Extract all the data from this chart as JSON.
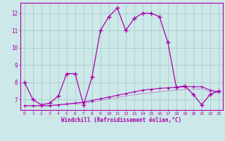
{
  "bg_color": "#cce8e8",
  "grid_color": "#aacccc",
  "line_color": "#aa00aa",
  "x_ticks": [
    0,
    1,
    2,
    3,
    4,
    5,
    6,
    7,
    8,
    9,
    10,
    11,
    12,
    13,
    14,
    15,
    16,
    17,
    18,
    19,
    20,
    21,
    22,
    23
  ],
  "xlabel": "Windchill (Refroidissement éolien,°C)",
  "ylabel_ticks": [
    7,
    8,
    9,
    10,
    11,
    12
  ],
  "ylim": [
    6.4,
    12.6
  ],
  "xlim": [
    -0.5,
    23.5
  ],
  "series1_x": [
    0,
    1,
    2,
    3,
    4,
    5,
    6,
    7,
    8,
    9,
    10,
    11,
    12,
    13,
    14,
    15,
    16,
    17,
    18,
    19,
    20,
    21,
    22,
    23
  ],
  "series1_y": [
    8.0,
    7.0,
    6.7,
    6.8,
    7.2,
    8.5,
    8.5,
    6.7,
    8.3,
    11.0,
    11.8,
    12.3,
    11.0,
    11.7,
    12.0,
    12.0,
    11.8,
    10.3,
    7.7,
    7.8,
    7.3,
    6.7,
    7.3,
    7.5
  ],
  "series2_x": [
    0,
    1,
    2,
    3,
    4,
    5,
    6,
    7,
    8,
    9,
    10,
    11,
    12,
    13,
    14,
    15,
    16,
    17,
    18,
    19,
    20,
    21,
    22,
    23
  ],
  "series2_y": [
    6.65,
    6.65,
    6.65,
    6.65,
    6.7,
    6.75,
    6.8,
    6.85,
    6.95,
    7.05,
    7.15,
    7.25,
    7.35,
    7.45,
    7.55,
    7.6,
    7.65,
    7.68,
    7.72,
    7.75,
    7.75,
    7.75,
    7.55,
    7.45
  ],
  "series3_x": [
    0,
    1,
    2,
    3,
    4,
    5,
    6,
    7,
    8,
    9,
    10,
    11,
    12,
    13,
    14,
    15,
    16,
    17,
    18,
    19,
    20,
    21,
    22,
    23
  ],
  "series3_y": [
    6.65,
    6.65,
    6.65,
    6.65,
    6.7,
    6.72,
    6.75,
    6.78,
    6.85,
    6.95,
    7.05,
    7.12,
    7.2,
    7.28,
    7.35,
    7.4,
    7.45,
    7.5,
    7.55,
    7.58,
    7.6,
    7.62,
    7.45,
    7.38
  ]
}
